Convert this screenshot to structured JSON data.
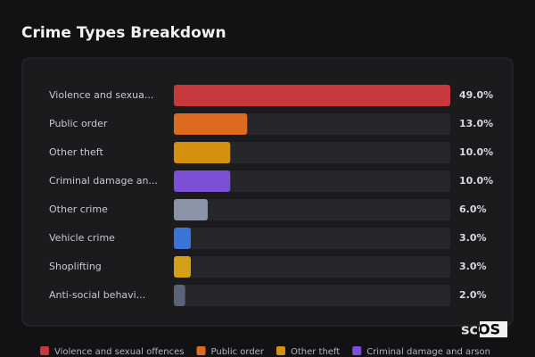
{
  "chart_data": {
    "type": "hbar",
    "title": "Crime Types Breakdown",
    "categories": [
      "Violence and sexua...",
      "Public order",
      "Other theft",
      "Criminal damage an...",
      "Other crime",
      "Vehicle crime",
      "Shoplifting",
      "Anti-social behavi..."
    ],
    "values": [
      49,
      13,
      10,
      10,
      6,
      3,
      3,
      2
    ],
    "value_labels": [
      "49.0%",
      "13.0%",
      "10.0%",
      "10.0%",
      "6.0%",
      "3.0%",
      "3.0%",
      "2.0%"
    ],
    "colors": [
      "#c8393d",
      "#dc6a1f",
      "#d4900f",
      "#7b4fd6",
      "#8a94a6",
      "#3a74d6",
      "#d4a017",
      "#5a6478"
    ],
    "xlim": [
      0,
      49
    ],
    "legend": [
      {
        "name": "Violence and sexual offences",
        "color": "#c8393d"
      },
      {
        "name": "Public order",
        "color": "#dc6a1f"
      },
      {
        "name": "Other theft",
        "color": "#d4900f"
      },
      {
        "name": "Criminal damage and arson",
        "color": "#7b4fd6"
      }
    ],
    "watermark": "scOS"
  }
}
